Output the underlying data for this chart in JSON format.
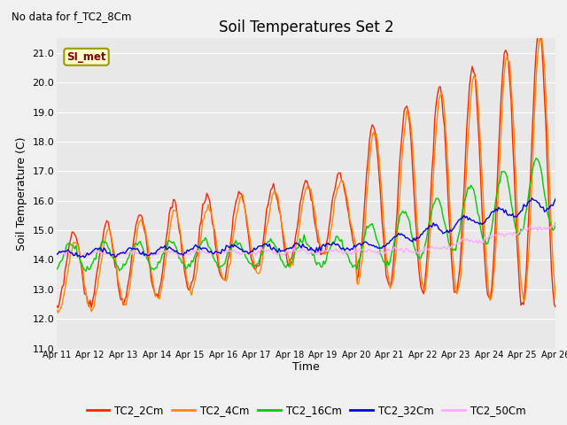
{
  "title": "Soil Temperatures Set 2",
  "subtitle": "No data for f_TC2_8Cm",
  "ylabel": "Soil Temperature (C)",
  "xlabel": "Time",
  "ylim": [
    11.0,
    21.5
  ],
  "yticks": [
    11.0,
    12.0,
    13.0,
    14.0,
    15.0,
    16.0,
    17.0,
    18.0,
    19.0,
    20.0,
    21.0
  ],
  "xtick_labels": [
    "Apr 11",
    "Apr 12",
    "Apr 13",
    "Apr 14",
    "Apr 15",
    "Apr 16",
    "Apr 17",
    "Apr 18",
    "Apr 19",
    "Apr 20",
    "Apr 21",
    "Apr 22",
    "Apr 23",
    "Apr 24",
    "Apr 25",
    "Apr 26"
  ],
  "fig_bg_color": "#f0f0f0",
  "bg_color": "#e8e8e8",
  "grid_color": "#ffffff",
  "annotation_text": "SI_met",
  "annotation_bg": "#ffffcc",
  "annotation_border": "#999900",
  "series_colors": {
    "TC2_2Cm": "#ff2200",
    "TC2_4Cm": "#ff8800",
    "TC2_16Cm": "#00cc00",
    "TC2_32Cm": "#0000dd",
    "TC2_50Cm": "#ffaaff"
  },
  "legend_labels": [
    "TC2_2Cm",
    "TC2_4Cm",
    "TC2_16Cm",
    "TC2_32Cm",
    "TC2_50Cm"
  ],
  "n_points": 360
}
